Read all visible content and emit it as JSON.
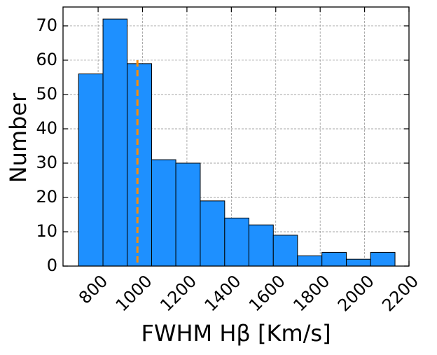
{
  "chart_data": {
    "type": "histogram",
    "xlabel": "FWHM Hβ [Km/s]",
    "ylabel": "Number",
    "bins": [
      712,
      822,
      931,
      1041,
      1150,
      1260,
      1370,
      1479,
      1589,
      1698,
      1808,
      1918,
      2027,
      2137
    ],
    "values": [
      56,
      72,
      59,
      31,
      30,
      19,
      14,
      12,
      9,
      3,
      4,
      2,
      4
    ],
    "color": "#1e90ff",
    "edgecolor": "#000000",
    "vline": 977,
    "vline_color": "#ff8c00",
    "xlim": [
      642,
      2200
    ],
    "ylim": [
      0,
      75.5
    ],
    "xticks": [
      800,
      1000,
      1200,
      1400,
      1600,
      1800,
      2000,
      2200
    ],
    "yticks": [
      0,
      10,
      20,
      30,
      40,
      50,
      60,
      70
    ],
    "grid": true
  }
}
